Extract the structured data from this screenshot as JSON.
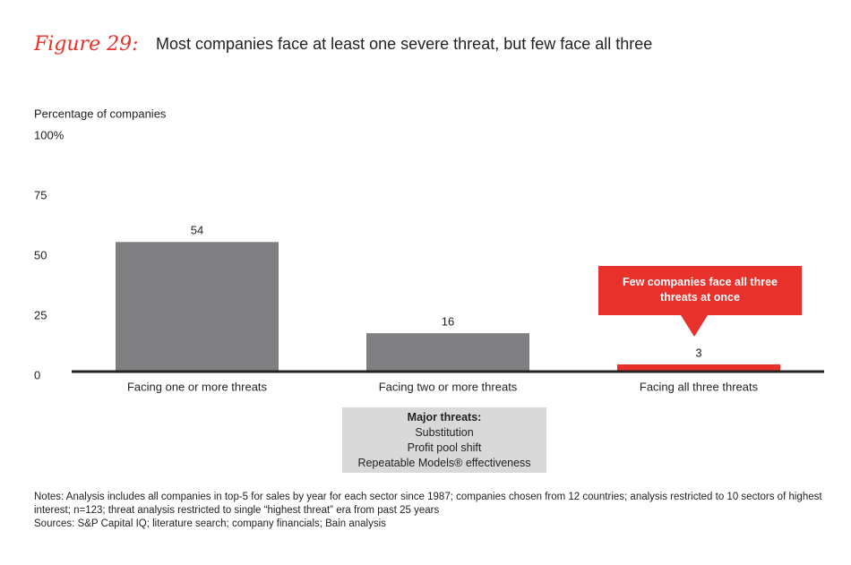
{
  "chart_data": {
    "type": "bar",
    "figure_label": "Figure 29:",
    "title": "Most companies face at least one severe threat, but few face all three",
    "y_axis_label": "Percentage of companies",
    "categories": [
      "Facing one or more threats",
      "Facing two or more threats",
      "Facing all three threats"
    ],
    "values": [
      54,
      16,
      3
    ],
    "colors": [
      "#808083",
      "#808083",
      "#e8312a"
    ],
    "ylim": [
      0,
      100
    ],
    "yticks": [
      0,
      25,
      50,
      75,
      {
        "value": 100,
        "label": "100%"
      }
    ],
    "annotation": "Few companies face all three threats at once",
    "threats_box": {
      "heading": "Major threats:",
      "items": [
        "Substitution",
        "Profit pool shift",
        "Repeatable Models® effectiveness"
      ]
    },
    "notes": "Notes: Analysis includes all companies in  top-5  for sales by year for each sector since 1987; companies chosen from 12 countries; analysis restricted to 10 sectors of highest interest; n=123; threat analysis restricted to single “highest threat” era from past 25 years",
    "sources": "Sources: S&P Capital IQ; literature search; company financials; Bain analysis"
  }
}
